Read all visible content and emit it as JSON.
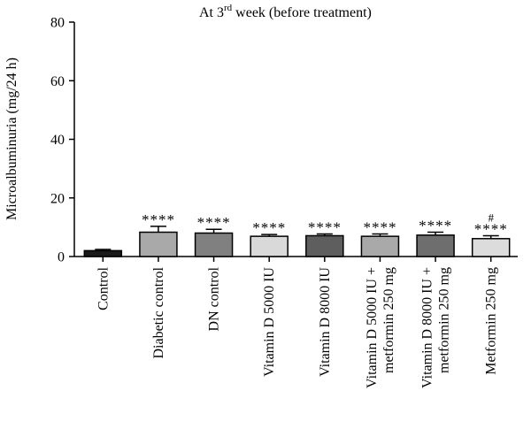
{
  "chart_data": {
    "type": "bar",
    "title_prefix": "At 3",
    "title_sup": "rd",
    "title_suffix": " week (before treatment)",
    "ylabel": "Microalbuminuria (mg/24 h)",
    "xlabel": "",
    "ylim": [
      0,
      80
    ],
    "yticks": [
      0,
      20,
      40,
      60,
      80
    ],
    "grid": false,
    "categories": [
      [
        "Control"
      ],
      [
        "Diabetic control"
      ],
      [
        "DN control"
      ],
      [
        "Vitamin D 5000 IU"
      ],
      [
        "Vitamin D 8000 IU"
      ],
      [
        "Vitamin D 5000 IU +",
        "metformin 250 mg"
      ],
      [
        "Vitamin D 8000 IU +",
        "metformin 250 mg"
      ],
      [
        "Metformin 250 mg"
      ]
    ],
    "values": [
      2.0,
      8.3,
      8.0,
      6.9,
      7.1,
      6.9,
      7.3,
      6.1
    ],
    "errors": [
      0.4,
      2.0,
      1.3,
      0.6,
      0.6,
      0.8,
      1.0,
      1.0
    ],
    "colors": [
      "#1a1a1a",
      "#a9a9a9",
      "#808080",
      "#d9d9d9",
      "#5e5e5e",
      "#a9a9a9",
      "#6e6e6e",
      "#dcdcdc"
    ],
    "significance": [
      "",
      "****",
      "****",
      "****",
      "****",
      "****",
      "****",
      "****"
    ],
    "significance_extra": [
      "",
      "",
      "",
      "",
      "",
      "",
      "",
      "#"
    ]
  }
}
